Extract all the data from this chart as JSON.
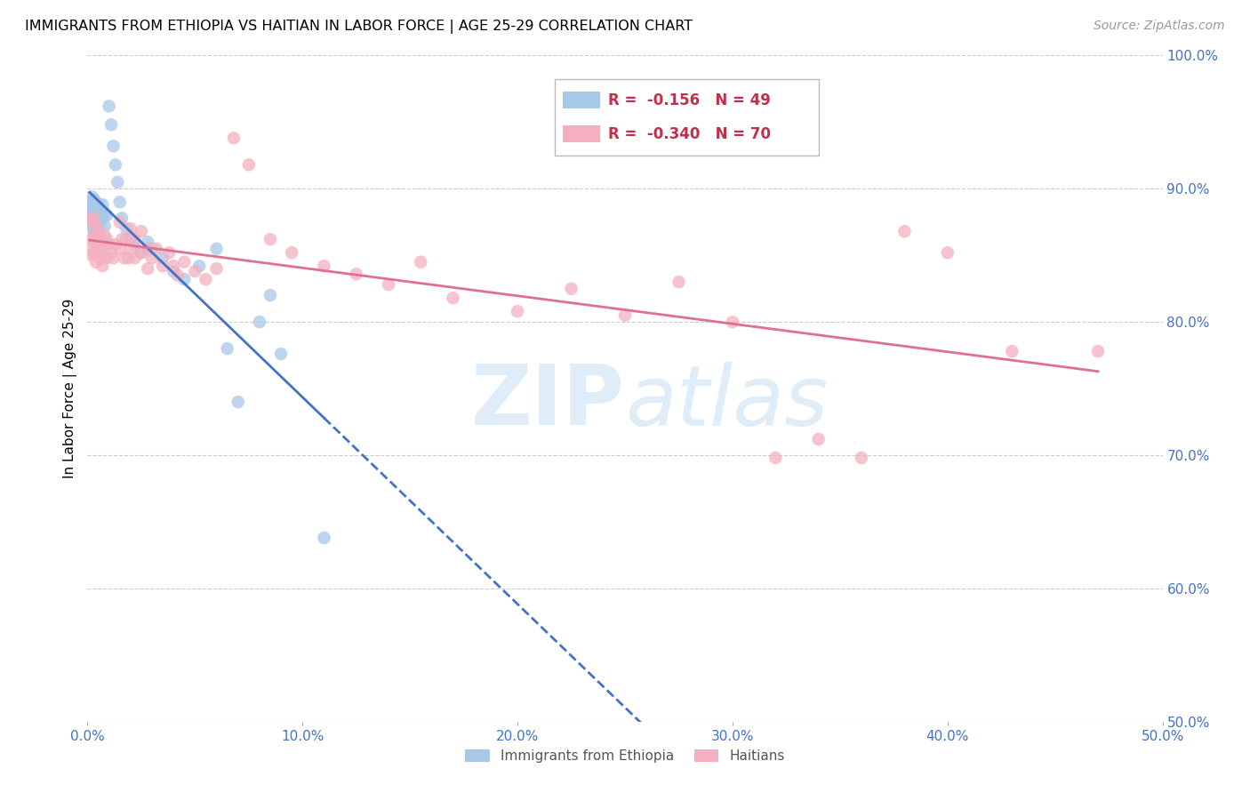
{
  "title": "IMMIGRANTS FROM ETHIOPIA VS HAITIAN IN LABOR FORCE | AGE 25-29 CORRELATION CHART",
  "source": "Source: ZipAtlas.com",
  "ylabel": "In Labor Force | Age 25-29",
  "xlim": [
    0.0,
    0.5
  ],
  "ylim": [
    0.5,
    1.0
  ],
  "xticks": [
    0.0,
    0.1,
    0.2,
    0.3,
    0.4,
    0.5
  ],
  "yticks": [
    0.5,
    0.6,
    0.7,
    0.8,
    0.9,
    1.0
  ],
  "ytick_labels_right": [
    "50.0%",
    "60.0%",
    "70.0%",
    "80.0%",
    "90.0%",
    "100.0%"
  ],
  "xtick_labels": [
    "0.0%",
    "10.0%",
    "20.0%",
    "30.0%",
    "40.0%",
    "50.0%"
  ],
  "ethiopia_color": "#a8c8e8",
  "haiti_color": "#f4b0c0",
  "ethiopia_line_color": "#4472c4",
  "haiti_line_color": "#e07090",
  "watermark": "ZIPAtlas",
  "ethiopia_R": "-0.156",
  "ethiopia_N": "49",
  "haiti_R": "-0.340",
  "haiti_N": "70",
  "ethiopia_points": [
    [
      0.001,
      0.89
    ],
    [
      0.001,
      0.886
    ],
    [
      0.001,
      0.882
    ],
    [
      0.002,
      0.894
    ],
    [
      0.002,
      0.888
    ],
    [
      0.002,
      0.878
    ],
    [
      0.002,
      0.872
    ],
    [
      0.003,
      0.892
    ],
    [
      0.003,
      0.885
    ],
    [
      0.003,
      0.876
    ],
    [
      0.003,
      0.868
    ],
    [
      0.004,
      0.89
    ],
    [
      0.004,
      0.882
    ],
    [
      0.004,
      0.874
    ],
    [
      0.004,
      0.866
    ],
    [
      0.005,
      0.888
    ],
    [
      0.005,
      0.878
    ],
    [
      0.005,
      0.87
    ],
    [
      0.006,
      0.884
    ],
    [
      0.006,
      0.876
    ],
    [
      0.007,
      0.888
    ],
    [
      0.007,
      0.878
    ],
    [
      0.008,
      0.882
    ],
    [
      0.008,
      0.872
    ],
    [
      0.009,
      0.88
    ],
    [
      0.01,
      0.962
    ],
    [
      0.011,
      0.948
    ],
    [
      0.012,
      0.932
    ],
    [
      0.013,
      0.918
    ],
    [
      0.014,
      0.905
    ],
    [
      0.015,
      0.89
    ],
    [
      0.016,
      0.878
    ],
    [
      0.018,
      0.87
    ],
    [
      0.02,
      0.862
    ],
    [
      0.022,
      0.858
    ],
    [
      0.025,
      0.852
    ],
    [
      0.028,
      0.86
    ],
    [
      0.03,
      0.855
    ],
    [
      0.035,
      0.848
    ],
    [
      0.04,
      0.838
    ],
    [
      0.045,
      0.832
    ],
    [
      0.052,
      0.842
    ],
    [
      0.06,
      0.855
    ],
    [
      0.065,
      0.78
    ],
    [
      0.07,
      0.74
    ],
    [
      0.08,
      0.8
    ],
    [
      0.085,
      0.82
    ],
    [
      0.09,
      0.776
    ],
    [
      0.11,
      0.638
    ]
  ],
  "haiti_points": [
    [
      0.001,
      0.878
    ],
    [
      0.001,
      0.858
    ],
    [
      0.002,
      0.875
    ],
    [
      0.002,
      0.862
    ],
    [
      0.002,
      0.85
    ],
    [
      0.003,
      0.878
    ],
    [
      0.003,
      0.865
    ],
    [
      0.003,
      0.852
    ],
    [
      0.004,
      0.872
    ],
    [
      0.004,
      0.858
    ],
    [
      0.004,
      0.845
    ],
    [
      0.005,
      0.868
    ],
    [
      0.005,
      0.855
    ],
    [
      0.006,
      0.862
    ],
    [
      0.006,
      0.848
    ],
    [
      0.007,
      0.858
    ],
    [
      0.007,
      0.842
    ],
    [
      0.008,
      0.865
    ],
    [
      0.008,
      0.85
    ],
    [
      0.009,
      0.862
    ],
    [
      0.009,
      0.848
    ],
    [
      0.01,
      0.858
    ],
    [
      0.011,
      0.852
    ],
    [
      0.012,
      0.848
    ],
    [
      0.013,
      0.858
    ],
    [
      0.015,
      0.875
    ],
    [
      0.015,
      0.855
    ],
    [
      0.016,
      0.862
    ],
    [
      0.017,
      0.848
    ],
    [
      0.018,
      0.862
    ],
    [
      0.019,
      0.848
    ],
    [
      0.02,
      0.87
    ],
    [
      0.02,
      0.855
    ],
    [
      0.022,
      0.862
    ],
    [
      0.022,
      0.848
    ],
    [
      0.025,
      0.868
    ],
    [
      0.025,
      0.852
    ],
    [
      0.028,
      0.855
    ],
    [
      0.028,
      0.84
    ],
    [
      0.03,
      0.848
    ],
    [
      0.032,
      0.855
    ],
    [
      0.035,
      0.842
    ],
    [
      0.038,
      0.852
    ],
    [
      0.04,
      0.842
    ],
    [
      0.042,
      0.835
    ],
    [
      0.045,
      0.845
    ],
    [
      0.05,
      0.838
    ],
    [
      0.055,
      0.832
    ],
    [
      0.06,
      0.84
    ],
    [
      0.068,
      0.938
    ],
    [
      0.075,
      0.918
    ],
    [
      0.085,
      0.862
    ],
    [
      0.095,
      0.852
    ],
    [
      0.11,
      0.842
    ],
    [
      0.125,
      0.836
    ],
    [
      0.14,
      0.828
    ],
    [
      0.155,
      0.845
    ],
    [
      0.17,
      0.818
    ],
    [
      0.2,
      0.808
    ],
    [
      0.225,
      0.825
    ],
    [
      0.25,
      0.805
    ],
    [
      0.275,
      0.83
    ],
    [
      0.3,
      0.8
    ],
    [
      0.32,
      0.698
    ],
    [
      0.34,
      0.712
    ],
    [
      0.36,
      0.698
    ],
    [
      0.38,
      0.868
    ],
    [
      0.4,
      0.852
    ],
    [
      0.43,
      0.778
    ],
    [
      0.47,
      0.778
    ]
  ]
}
